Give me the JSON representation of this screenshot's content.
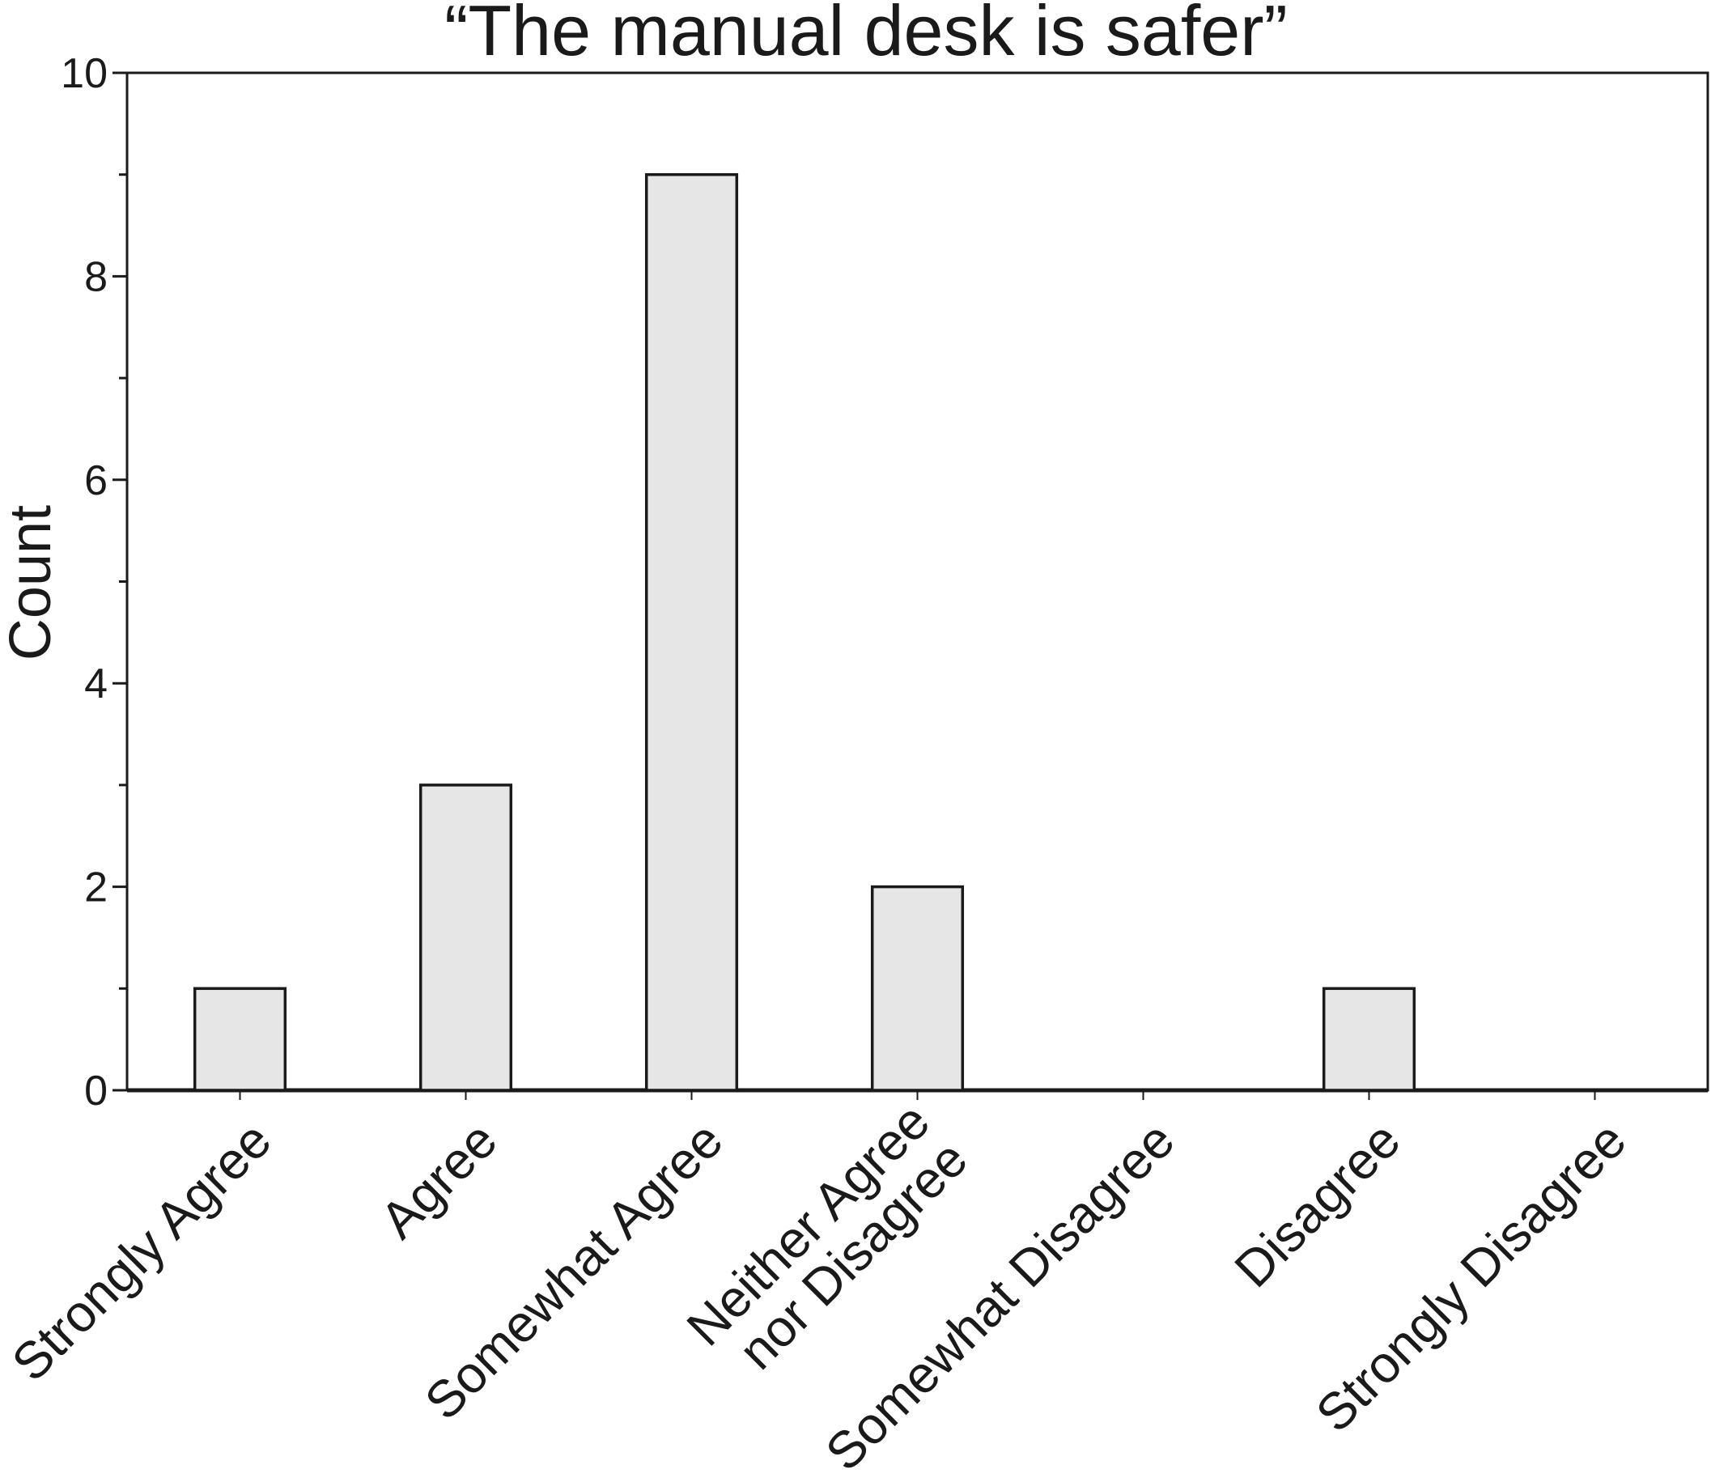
{
  "chart_data": {
    "type": "bar",
    "title": "“The manual desk is safer”",
    "xlabel": "",
    "ylabel": "Count",
    "categories": [
      "Strongly Agree",
      "Agree",
      "Somewhat Agree",
      "Neither Agree nor Disagree",
      "Somewhat Disagree",
      "Disagree",
      "Strongly Disagree"
    ],
    "category_label_lines": [
      [
        "Strongly Agree"
      ],
      [
        "Agree"
      ],
      [
        "Somewhat Agree"
      ],
      [
        "Neither Agree",
        "nor Disagree"
      ],
      [
        "Somewhat Disagree"
      ],
      [
        "Disagree"
      ],
      [
        "Strongly Disagree"
      ]
    ],
    "values": [
      1,
      3,
      9,
      2,
      0,
      1,
      0
    ],
    "ylim": [
      0,
      10
    ],
    "yticks": [
      0,
      2,
      4,
      6,
      8,
      10
    ],
    "ytick_labels": [
      "0",
      "2",
      "4",
      "6",
      "8",
      "10"
    ],
    "yminor_ticks": [
      1,
      3,
      5,
      7,
      9
    ],
    "grid": false,
    "legend": "none",
    "colors": {
      "bar_fill": "#e6e6e6",
      "bar_stroke": "#1a1a1a",
      "axis": "#1a1a1a"
    }
  }
}
